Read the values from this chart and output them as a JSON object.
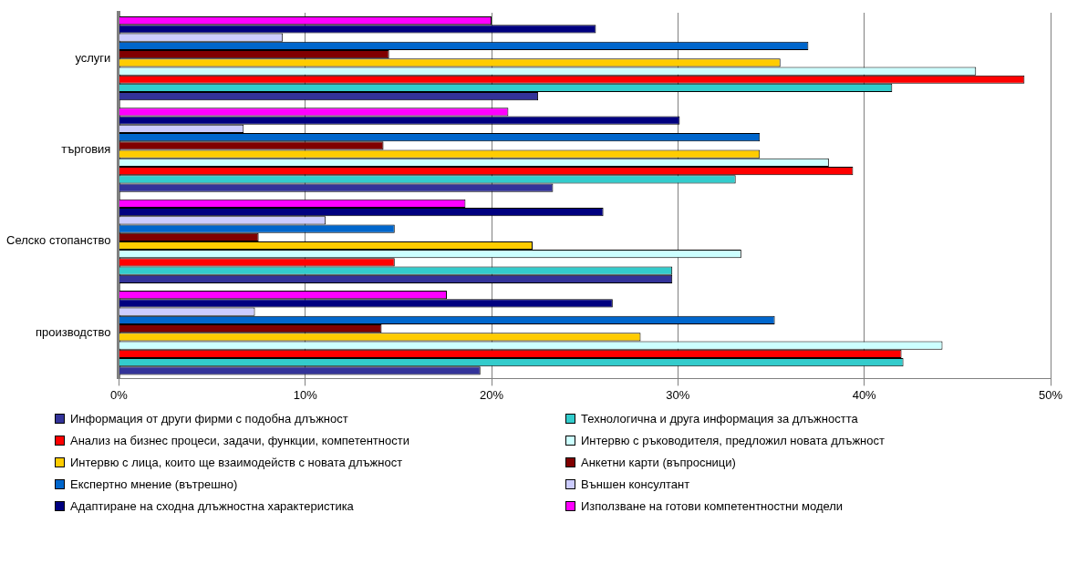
{
  "chart_data": {
    "type": "bar",
    "orientation": "horizontal",
    "categories": [
      "услуги",
      "търговия",
      "Селско стопанство",
      "производство"
    ],
    "series": [
      {
        "name": "Информация от други фирми с подобна длъжност",
        "color": "#333399",
        "values": [
          22.5,
          23.3,
          29.7,
          19.4
        ]
      },
      {
        "name": "Технологична и друга информация за длъжността",
        "color": "#33cccc",
        "values": [
          41.5,
          33.1,
          29.7,
          42.1
        ]
      },
      {
        "name": "Анализ на бизнес процеси, задачи, функции, компетентности",
        "color": "#ff0000",
        "values": [
          48.6,
          39.4,
          14.8,
          42
        ]
      },
      {
        "name": "Интервю с ръководителя, предложил новата длъжност",
        "color": "#ccffff",
        "values": [
          46,
          38.1,
          33.4,
          44.2
        ]
      },
      {
        "name": "Интервю с лица, които ще взаимодейств с новата длъжност",
        "color": "#ffcc00",
        "values": [
          35.5,
          34.4,
          22.2,
          28
        ]
      },
      {
        "name": "Анкетни карти (въпросници)",
        "color": "#800000",
        "values": [
          14.5,
          14.2,
          7.5,
          14.1
        ]
      },
      {
        "name": "Експертно мнение (вътрешно)",
        "color": "#0066cc",
        "values": [
          37,
          34.4,
          14.8,
          35.2
        ]
      },
      {
        "name": "Външен консултант",
        "color": "#ccccff",
        "values": [
          8.8,
          6.7,
          11.1,
          7.3
        ]
      },
      {
        "name": "Адаптиране на сходна длъжностна характеристика",
        "color": "#000080",
        "values": [
          25.6,
          30.1,
          26,
          26.5
        ]
      },
      {
        "name": "Използване на готови компетентностни модели",
        "color": "#ff00ff",
        "values": [
          20,
          20.9,
          18.6,
          17.6
        ]
      }
    ],
    "xlim": [
      0,
      50
    ],
    "xticks": [
      {
        "value": 0,
        "label": "0%"
      },
      {
        "value": 10,
        "label": "10%"
      },
      {
        "value": 20,
        "label": "20%"
      },
      {
        "value": 30,
        "label": "30%"
      },
      {
        "value": 40,
        "label": "40%"
      },
      {
        "value": 50,
        "label": "50%"
      }
    ],
    "grid": "x",
    "legend": "bottom"
  }
}
